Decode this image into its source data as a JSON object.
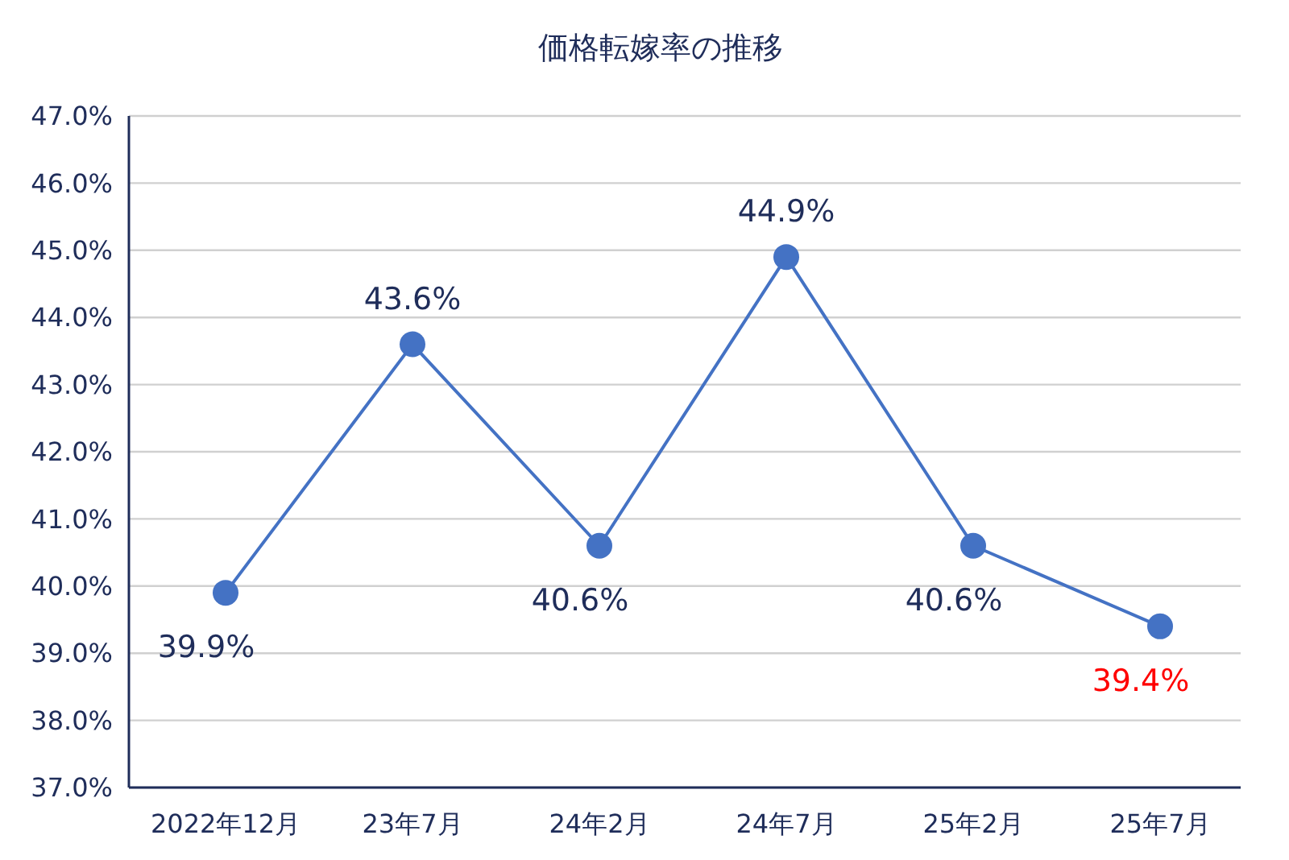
{
  "chart_data": {
    "type": "line",
    "title": "価格転嫁率の推移",
    "categories": [
      "2022年12月",
      "23年7月",
      "24年2月",
      "24年7月",
      "25年2月",
      "25年7月"
    ],
    "series": [
      {
        "color": "#4472c4",
        "values": [
          39.9,
          43.6,
          40.6,
          44.9,
          40.6,
          39.4
        ]
      }
    ],
    "value_labels": [
      "39.9%",
      "43.6%",
      "40.6%",
      "44.9%",
      "40.6%",
      "39.4%"
    ],
    "ylim": [
      37,
      47
    ],
    "yticks": [
      {
        "value": 37,
        "label": "37.0%"
      },
      {
        "value": 38,
        "label": "38.0%"
      },
      {
        "value": 39,
        "label": "39.0%"
      },
      {
        "value": 40,
        "label": "40.0%"
      },
      {
        "value": 41,
        "label": "41.0%"
      },
      {
        "value": 42,
        "label": "42.0%"
      },
      {
        "value": 43,
        "label": "43.0%"
      },
      {
        "value": 44,
        "label": "44.0%"
      },
      {
        "value": 45,
        "label": "45.0%"
      },
      {
        "value": 46,
        "label": "46.0%"
      },
      {
        "value": 47,
        "label": "47.0%"
      }
    ],
    "grid": "y",
    "marker": "circle",
    "line_style": "solid"
  }
}
